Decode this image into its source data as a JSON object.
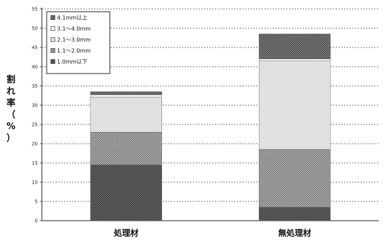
{
  "chart_data": {
    "type": "bar",
    "stacked": true,
    "categories": [
      "処理材",
      "無処理材"
    ],
    "ylabel": "割れ率（%）",
    "ylim": [
      0,
      55
    ],
    "yticks": [
      0,
      5,
      10,
      15,
      20,
      25,
      30,
      35,
      40,
      45,
      50,
      55
    ],
    "grid": true,
    "legend_position": "top-left",
    "series": [
      {
        "name": "1.0mm以下",
        "values": [
          14.5,
          3.5
        ],
        "color": "#5a5a5a",
        "pattern": "dense-hatch"
      },
      {
        "name": "1.1～2.0mm",
        "values": [
          8.5,
          15.0
        ],
        "color": "#8a8a8a",
        "pattern": "diagonal-hatch"
      },
      {
        "name": "2.1～3.0mm",
        "values": [
          9.0,
          23.0
        ],
        "color": "#bdbdbd",
        "pattern": "light-dots"
      },
      {
        "name": "3.1～4.0mm",
        "values": [
          0.7,
          0.5
        ],
        "color": "#e6e6e6",
        "pattern": "sparse-dots"
      },
      {
        "name": "4.1mm以上",
        "values": [
          0.8,
          6.5
        ],
        "color": "#6a6a6a",
        "pattern": "crosshatch"
      }
    ]
  }
}
